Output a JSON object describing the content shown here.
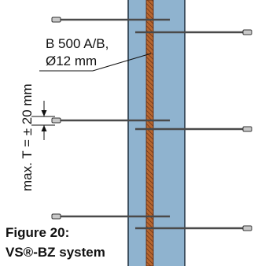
{
  "bar_label_line1": "B 500 A/B,",
  "bar_label_line2": "Ø12 mm",
  "tolerance_label": "max. T = ± 20 mm",
  "figure_caption_line1": "Figure 20:",
  "figure_caption_line2": "VS®-BZ system",
  "colors": {
    "wall_fill": "#8fb3cf",
    "wall_edge": "#1f2f3f",
    "bar_fill": "#b8672f",
    "bar_hatch": "#6b3218",
    "rod": "#4a4a4a",
    "ferrule": "#c9c9c9"
  }
}
